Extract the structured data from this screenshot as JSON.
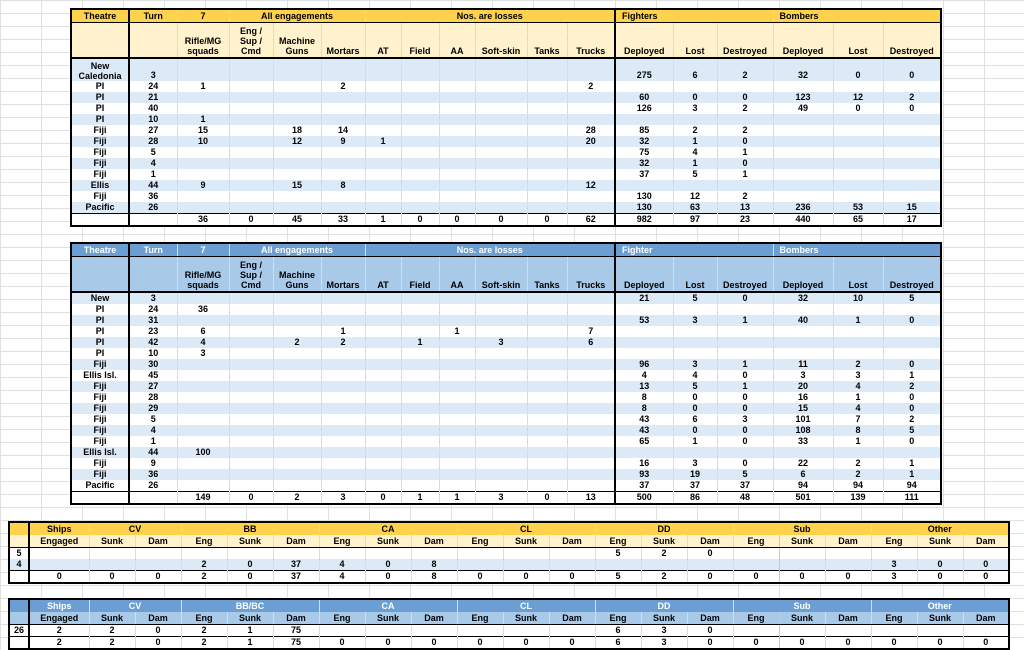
{
  "colors": {
    "gold_band": "#FFD24D",
    "gold_sub": "#FFF2CC",
    "blue_band": "#6B9FD4",
    "blue_sub": "#A9C9E9",
    "row_stripe": "#DCE9F6",
    "border": "#000000"
  },
  "force_tables": [
    {
      "theme": "gold",
      "name": "engagement-losses-table-top",
      "header": {
        "theatre": "Theatre",
        "turn_label": "Turn",
        "turn_value": "7",
        "engagements": "All engagements",
        "losses": "Nos. are losses",
        "fighters": "Fighters",
        "bombers": "Bombers"
      },
      "land_columns": [
        "Rifle/MG\nsquads",
        "Eng /\nSup /\nCmd",
        "Machine\nGuns",
        "Mortars",
        "AT",
        "Field",
        "AA",
        "Soft-skin",
        "Tanks",
        "Trucks"
      ],
      "air_columns": [
        "Deployed",
        "Lost",
        "Destroyed",
        "Deployed",
        "Lost",
        "Destroyed"
      ],
      "rows": [
        {
          "theatre": "New Caledonia",
          "turn": "3",
          "tall": true,
          "land": [
            "",
            "",
            "",
            "",
            "",
            "",
            "",
            "",
            "",
            ""
          ],
          "air": [
            "275",
            "6",
            "2",
            "32",
            "0",
            "0"
          ]
        },
        {
          "theatre": "PI",
          "turn": "24",
          "land": [
            "1",
            "",
            "",
            "2",
            "",
            "",
            "",
            "",
            "",
            "2"
          ],
          "air": [
            "",
            "",
            "",
            "",
            "",
            ""
          ]
        },
        {
          "theatre": "PI",
          "turn": "21",
          "land": [
            "",
            "",
            "",
            "",
            "",
            "",
            "",
            "",
            "",
            ""
          ],
          "air": [
            "60",
            "0",
            "0",
            "123",
            "12",
            "2"
          ]
        },
        {
          "theatre": "PI",
          "turn": "40",
          "land": [
            "",
            "",
            "",
            "",
            "",
            "",
            "",
            "",
            "",
            ""
          ],
          "air": [
            "126",
            "3",
            "2",
            "49",
            "0",
            "0"
          ]
        },
        {
          "theatre": "PI",
          "turn": "10",
          "land": [
            "1",
            "",
            "",
            "",
            "",
            "",
            "",
            "",
            "",
            ""
          ],
          "air": [
            "",
            "",
            "",
            "",
            "",
            ""
          ]
        },
        {
          "theatre": "Fiji",
          "turn": "27",
          "land": [
            "15",
            "",
            "18",
            "14",
            "",
            "",
            "",
            "",
            "",
            "28"
          ],
          "air": [
            "85",
            "2",
            "2",
            "",
            "",
            ""
          ]
        },
        {
          "theatre": "Fiji",
          "turn": "28",
          "land": [
            "10",
            "",
            "12",
            "9",
            "1",
            "",
            "",
            "",
            "",
            "20"
          ],
          "air": [
            "32",
            "1",
            "0",
            "",
            "",
            ""
          ]
        },
        {
          "theatre": "Fiji",
          "turn": "5",
          "land": [
            "",
            "",
            "",
            "",
            "",
            "",
            "",
            "",
            "",
            ""
          ],
          "air": [
            "75",
            "4",
            "1",
            "",
            "",
            ""
          ]
        },
        {
          "theatre": "Fiji",
          "turn": "4",
          "land": [
            "",
            "",
            "",
            "",
            "",
            "",
            "",
            "",
            "",
            ""
          ],
          "air": [
            "32",
            "1",
            "0",
            "",
            "",
            ""
          ]
        },
        {
          "theatre": "Fiji",
          "turn": "1",
          "land": [
            "",
            "",
            "",
            "",
            "",
            "",
            "",
            "",
            "",
            ""
          ],
          "air": [
            "37",
            "5",
            "1",
            "",
            "",
            ""
          ]
        },
        {
          "theatre": "Ellis",
          "turn": "44",
          "land": [
            "9",
            "",
            "15",
            "8",
            "",
            "",
            "",
            "",
            "",
            "12"
          ],
          "air": [
            "",
            "",
            "",
            "",
            "",
            ""
          ]
        },
        {
          "theatre": "Fiji",
          "turn": "36",
          "land": [
            "",
            "",
            "",
            "",
            "",
            "",
            "",
            "",
            "",
            ""
          ],
          "air": [
            "130",
            "12",
            "2",
            "",
            "",
            ""
          ]
        },
        {
          "theatre": "Pacific",
          "turn": "26",
          "land": [
            "",
            "",
            "",
            "",
            "",
            "",
            "",
            "",
            "",
            ""
          ],
          "air": [
            "130",
            "63",
            "13",
            "236",
            "53",
            "15"
          ]
        }
      ],
      "totals": {
        "land": [
          "36",
          "0",
          "45",
          "33",
          "1",
          "0",
          "0",
          "0",
          "0",
          "62"
        ],
        "air": [
          "982",
          "97",
          "23",
          "440",
          "65",
          "17"
        ]
      }
    },
    {
      "theme": "blue",
      "name": "engagement-losses-table-bottom",
      "header": {
        "theatre": "Theatre",
        "turn_label": "Turn",
        "turn_value": "7",
        "engagements": "All engagements",
        "losses": "Nos. are losses",
        "fighters": "Fighter",
        "bombers": "Bombers"
      },
      "land_columns": [
        "Rifle/MG\nsquads",
        "Eng /\nSup /\nCmd",
        "Machine\nGuns",
        "Mortars",
        "AT",
        "Field",
        "AA",
        "Soft-skin",
        "Tanks",
        "Trucks"
      ],
      "air_columns": [
        "Deployed",
        "Lost",
        "Destroyed",
        "Deployed",
        "Lost",
        "Destroyed"
      ],
      "rows": [
        {
          "theatre": "New",
          "turn": "3",
          "land": [
            "",
            "",
            "",
            "",
            "",
            "",
            "",
            "",
            "",
            ""
          ],
          "air": [
            "21",
            "5",
            "0",
            "32",
            "10",
            "5"
          ]
        },
        {
          "theatre": "PI",
          "turn": "24",
          "land": [
            "36",
            "",
            "",
            "",
            "",
            "",
            "",
            "",
            "",
            ""
          ],
          "air": [
            "",
            "",
            "",
            "",
            "",
            ""
          ]
        },
        {
          "theatre": "PI",
          "turn": "31",
          "land": [
            "",
            "",
            "",
            "",
            "",
            "",
            "",
            "",
            "",
            ""
          ],
          "air": [
            "53",
            "3",
            "1",
            "40",
            "1",
            "0"
          ]
        },
        {
          "theatre": "PI",
          "turn": "23",
          "land": [
            "6",
            "",
            "",
            "1",
            "",
            "",
            "1",
            "",
            "",
            "7"
          ],
          "air": [
            "",
            "",
            "",
            "",
            "",
            ""
          ]
        },
        {
          "theatre": "PI",
          "turn": "42",
          "land": [
            "4",
            "",
            "2",
            "2",
            "",
            "1",
            "",
            "3",
            "",
            "6"
          ],
          "air": [
            "",
            "",
            "",
            "",
            "",
            ""
          ]
        },
        {
          "theatre": "PI",
          "turn": "10",
          "land": [
            "3",
            "",
            "",
            "",
            "",
            "",
            "",
            "",
            "",
            ""
          ],
          "air": [
            "",
            "",
            "",
            "",
            "",
            ""
          ]
        },
        {
          "theatre": "Fiji",
          "turn": "30",
          "land": [
            "",
            "",
            "",
            "",
            "",
            "",
            "",
            "",
            "",
            ""
          ],
          "air": [
            "96",
            "3",
            "1",
            "11",
            "2",
            "0"
          ]
        },
        {
          "theatre": "Ellis Isl.",
          "turn": "45",
          "land": [
            "",
            "",
            "",
            "",
            "",
            "",
            "",
            "",
            "",
            ""
          ],
          "air": [
            "4",
            "4",
            "0",
            "3",
            "3",
            "1"
          ]
        },
        {
          "theatre": "Fiji",
          "turn": "27",
          "land": [
            "",
            "",
            "",
            "",
            "",
            "",
            "",
            "",
            "",
            ""
          ],
          "air": [
            "13",
            "5",
            "1",
            "20",
            "4",
            "2"
          ]
        },
        {
          "theatre": "Fiji",
          "turn": "28",
          "land": [
            "",
            "",
            "",
            "",
            "",
            "",
            "",
            "",
            "",
            ""
          ],
          "air": [
            "8",
            "0",
            "0",
            "16",
            "1",
            "0"
          ]
        },
        {
          "theatre": "Fiji",
          "turn": "29",
          "land": [
            "",
            "",
            "",
            "",
            "",
            "",
            "",
            "",
            "",
            ""
          ],
          "air": [
            "8",
            "0",
            "0",
            "15",
            "4",
            "0"
          ]
        },
        {
          "theatre": "Fiji",
          "turn": "5",
          "land": [
            "",
            "",
            "",
            "",
            "",
            "",
            "",
            "",
            "",
            ""
          ],
          "air": [
            "43",
            "6",
            "3",
            "101",
            "7",
            "2"
          ]
        },
        {
          "theatre": "Fiji",
          "turn": "4",
          "land": [
            "",
            "",
            "",
            "",
            "",
            "",
            "",
            "",
            "",
            ""
          ],
          "air": [
            "43",
            "0",
            "0",
            "108",
            "8",
            "5"
          ]
        },
        {
          "theatre": "Fiji",
          "turn": "1",
          "land": [
            "",
            "",
            "",
            "",
            "",
            "",
            "",
            "",
            "",
            ""
          ],
          "air": [
            "65",
            "1",
            "0",
            "33",
            "1",
            "0"
          ]
        },
        {
          "theatre": "Ellis Isl.",
          "turn": "44",
          "land": [
            "100",
            "",
            "",
            "",
            "",
            "",
            "",
            "",
            "",
            ""
          ],
          "air": [
            "",
            "",
            "",
            "",
            "",
            ""
          ]
        },
        {
          "theatre": "Fiji",
          "turn": "9",
          "land": [
            "",
            "",
            "",
            "",
            "",
            "",
            "",
            "",
            "",
            ""
          ],
          "air": [
            "16",
            "3",
            "0",
            "22",
            "2",
            "1"
          ]
        },
        {
          "theatre": "Fiji",
          "turn": "36",
          "land": [
            "",
            "",
            "",
            "",
            "",
            "",
            "",
            "",
            "",
            ""
          ],
          "air": [
            "93",
            "19",
            "5",
            "6",
            "2",
            "1"
          ]
        },
        {
          "theatre": "Pacific",
          "turn": "26",
          "land": [
            "",
            "",
            "",
            "",
            "",
            "",
            "",
            "",
            "",
            ""
          ],
          "air": [
            "37",
            "37",
            "37",
            "94",
            "94",
            "94"
          ]
        }
      ],
      "totals": {
        "land": [
          "149",
          "0",
          "2",
          "3",
          "0",
          "1",
          "1",
          "3",
          "0",
          "13"
        ],
        "air": [
          "500",
          "86",
          "48",
          "501",
          "139",
          "111"
        ]
      }
    }
  ],
  "ship_tables": [
    {
      "theme": "gold",
      "name": "ship-losses-table-top",
      "groups": [
        {
          "label": "Ships",
          "span": 1
        },
        {
          "label": "CV",
          "span": 2
        },
        {
          "label": "BB",
          "span": 3
        },
        {
          "label": "CA",
          "span": 3
        },
        {
          "label": "CL",
          "span": 3
        },
        {
          "label": "DD",
          "span": 3
        },
        {
          "label": "Sub",
          "span": 3
        },
        {
          "label": "Other",
          "span": 3
        }
      ],
      "subheaders": [
        "Engaged",
        "Sunk",
        "Dam",
        "Eng",
        "Sunk",
        "Dam",
        "Eng",
        "Sunk",
        "Dam",
        "Eng",
        "Sunk",
        "Dam",
        "Eng",
        "Sunk",
        "Dam",
        "Eng",
        "Sunk",
        "Dam",
        "Eng",
        "Sunk",
        "Dam"
      ],
      "rows": [
        {
          "label": "5",
          "stripe": false,
          "cells": [
            "",
            "",
            "",
            "",
            "",
            "",
            "",
            "",
            "",
            "",
            "",
            "",
            "5",
            "2",
            "0",
            "",
            "",
            "",
            "",
            "",
            ""
          ]
        },
        {
          "label": "4",
          "stripe": true,
          "cells": [
            "",
            "",
            "",
            "2",
            "0",
            "37",
            "4",
            "0",
            "8",
            "",
            "",
            "",
            "",
            "",
            "",
            "",
            "",
            "",
            "3",
            "0",
            "0"
          ]
        }
      ],
      "totals": [
        "0",
        "0",
        "0",
        "2",
        "0",
        "37",
        "4",
        "0",
        "8",
        "0",
        "0",
        "0",
        "5",
        "2",
        "0",
        "0",
        "0",
        "0",
        "3",
        "0",
        "0"
      ]
    },
    {
      "theme": "blue",
      "name": "ship-losses-table-bottom",
      "groups": [
        {
          "label": "Ships",
          "span": 1
        },
        {
          "label": "CV",
          "span": 2
        },
        {
          "label": "BB/BC",
          "span": 3
        },
        {
          "label": "CA",
          "span": 3
        },
        {
          "label": "CL",
          "span": 3
        },
        {
          "label": "DD",
          "span": 3
        },
        {
          "label": "Sub",
          "span": 3
        },
        {
          "label": "Other",
          "span": 3
        }
      ],
      "subheaders": [
        "Engaged",
        "Sunk",
        "Dam",
        "Eng",
        "Sunk",
        "Dam",
        "Eng",
        "Sunk",
        "Dam",
        "Eng",
        "Sunk",
        "Dam",
        "Eng",
        "Sunk",
        "Dam",
        "Eng",
        "Sunk",
        "Dam",
        "Eng",
        "Sunk",
        "Dam"
      ],
      "rows": [
        {
          "label": "26",
          "stripe": false,
          "cells": [
            "2",
            "2",
            "0",
            "2",
            "1",
            "75",
            "",
            "",
            "",
            "",
            "",
            "",
            "6",
            "3",
            "0",
            "",
            "",
            "",
            "",
            "",
            ""
          ]
        }
      ],
      "totals": [
        "2",
        "2",
        "0",
        "2",
        "1",
        "75",
        "0",
        "0",
        "0",
        "0",
        "0",
        "0",
        "6",
        "3",
        "0",
        "0",
        "0",
        "0",
        "0",
        "0",
        "0"
      ]
    }
  ]
}
